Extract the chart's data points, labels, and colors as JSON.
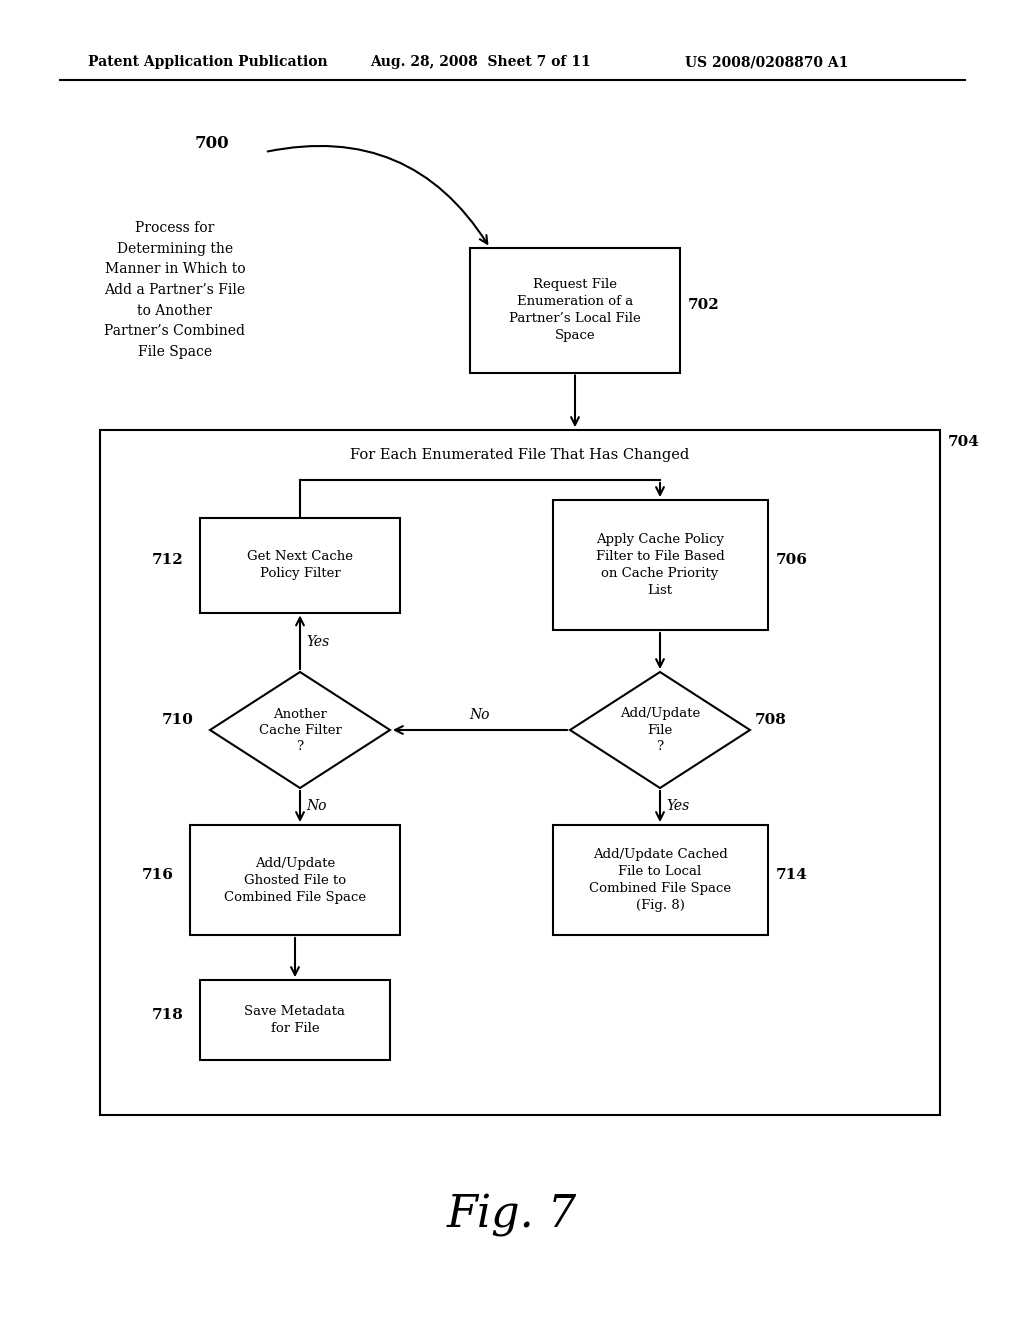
{
  "bg_color": "#ffffff",
  "header_left": "Patent Application Publication",
  "header_mid": "Aug. 28, 2008  Sheet 7 of 11",
  "header_right": "US 2008/0208870 A1",
  "fig_label": "Fig. 7",
  "label_700": "700",
  "text_700": "Process for\nDetermining the\nManner in Which to\nAdd a Partner’s File\nto Another\nPartner’s Combined\nFile Space",
  "label_702": "702",
  "text_702": "Request File\nEnumeration of a\nPartner’s Local File\nSpace",
  "label_704": "704",
  "text_704": "For Each Enumerated File That Has Changed",
  "label_706": "706",
  "text_706": "Apply Cache Policy\nFilter to File Based\non Cache Priority\nList",
  "label_708": "708",
  "text_708": "Add/Update\nFile\n?",
  "label_710": "710",
  "text_710": "Another\nCache Filter\n?",
  "label_712": "712",
  "text_712": "Get Next Cache\nPolicy Filter",
  "label_714": "714",
  "text_714": "Add/Update Cached\nFile to Local\nCombined File Space\n(Fig. 8)",
  "label_716": "716",
  "text_716": "Add/Update\nGhosted File to\nCombined File Space",
  "label_718": "718",
  "text_718": "Save Metadata\nfor File",
  "yes_text": "Yes",
  "no_text": "No"
}
